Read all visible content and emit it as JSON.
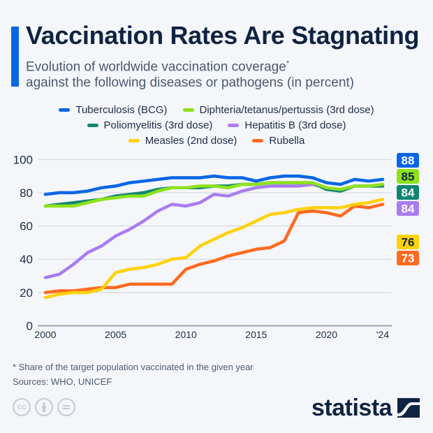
{
  "header": {
    "title": "Vaccination Rates Are Stagnating",
    "subtitle_line1": "Evolution of worldwide vaccination coverage",
    "subtitle_asterisk": "*",
    "subtitle_line2": "against the following diseases or pathogens (in percent)"
  },
  "footer": {
    "note": "* Share of the target population vaccinated in the given year",
    "sources": "Sources: WHO, UNICEF",
    "license_icons": [
      "cc-icon",
      "attribution-icon",
      "no-derivatives-icon"
    ],
    "brand": "statista"
  },
  "chart_data": {
    "type": "line",
    "title": "Vaccination Rates Are Stagnating",
    "xlabel": "",
    "ylabel": "",
    "ylim": [
      0,
      100
    ],
    "yticks": [
      0,
      20,
      40,
      60,
      80,
      100
    ],
    "xticks": [
      2000,
      2005,
      2010,
      2015,
      2020,
      2024
    ],
    "xtick_labels": [
      "2000",
      "2005",
      "2010",
      "2015",
      "2020",
      "'24"
    ],
    "grid": true,
    "legend_position": "top-center",
    "x": [
      2000,
      2001,
      2002,
      2003,
      2004,
      2005,
      2006,
      2007,
      2008,
      2009,
      2010,
      2011,
      2012,
      2013,
      2014,
      2015,
      2016,
      2017,
      2018,
      2019,
      2020,
      2021,
      2022,
      2023,
      2024
    ],
    "series": [
      {
        "name": "Tuberculosis (BCG)",
        "color": "#0a66e4",
        "label_text_color": "#ffffff",
        "end_label": "88",
        "values": [
          79,
          80,
          80,
          81,
          83,
          84,
          86,
          87,
          88,
          89,
          89,
          89,
          90,
          89,
          89,
          87,
          89,
          90,
          90,
          89,
          86,
          85,
          88,
          87,
          88
        ]
      },
      {
        "name": "Diphteria/tetanus/pertussis (3rd dose)",
        "color": "#8ee21b",
        "label_text_color": "#0f2342",
        "end_label": "85",
        "values": [
          72,
          72,
          72,
          74,
          76,
          77,
          78,
          78,
          81,
          83,
          83,
          84,
          84,
          83,
          85,
          85,
          86,
          86,
          86,
          86,
          83,
          82,
          84,
          84,
          85
        ]
      },
      {
        "name": "Poliomyelitis (3rd dose)",
        "color": "#0f8672",
        "label_text_color": "#ffffff",
        "end_label": "84",
        "values": [
          72,
          73,
          74,
          75,
          76,
          78,
          79,
          80,
          82,
          83,
          83,
          83,
          84,
          84,
          85,
          85,
          86,
          86,
          86,
          86,
          82,
          81,
          84,
          84,
          84
        ]
      },
      {
        "name": "Hepatitis B (3rd dose)",
        "color": "#a97cf0",
        "label_text_color": "#ffffff",
        "end_label": "84",
        "values": [
          29,
          31,
          37,
          44,
          48,
          54,
          58,
          63,
          69,
          73,
          72,
          74,
          79,
          78,
          81,
          83,
          84,
          84,
          84,
          85,
          83,
          81,
          84,
          84,
          84
        ]
      },
      {
        "name": "Measles (2nd dose)",
        "color": "#ffd20a",
        "label_text_color": "#0f2342",
        "end_label": "76",
        "values": [
          17,
          19,
          20,
          20,
          22,
          32,
          34,
          35,
          37,
          40,
          41,
          48,
          52,
          56,
          59,
          63,
          67,
          68,
          70,
          71,
          71,
          71,
          73,
          74,
          76
        ]
      },
      {
        "name": "Rubella",
        "color": "#ff6a1f",
        "label_text_color": "#ffffff",
        "end_label": "73",
        "values": [
          20,
          21,
          21,
          22,
          23,
          23,
          25,
          25,
          25,
          25,
          34,
          37,
          39,
          42,
          44,
          46,
          47,
          51,
          68,
          69,
          68,
          66,
          72,
          71,
          73
        ]
      }
    ]
  }
}
